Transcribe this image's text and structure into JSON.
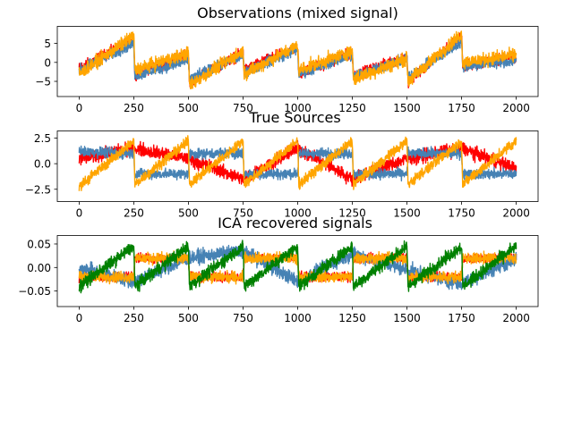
{
  "chart_data": [
    {
      "type": "line",
      "title": "Observations (mixed signal)",
      "xlabel": "",
      "ylabel": "",
      "xlim": [
        -100,
        2100
      ],
      "ylim": [
        -9,
        9.5
      ],
      "xticks": [
        0,
        250,
        500,
        750,
        1000,
        1250,
        1500,
        1750,
        2000
      ],
      "xtick_labels": [
        "0",
        "250",
        "500",
        "750",
        "1000",
        "1250",
        "1500",
        "1750",
        "2000"
      ],
      "yticks": [
        5,
        0,
        -5
      ],
      "ytick_labels": [
        "5",
        "0",
        "−5"
      ],
      "grid": false,
      "legend": "none",
      "x_range": [
        0,
        2000
      ],
      "n_samples": 2000,
      "series": [
        {
          "color": "#ff0000",
          "keypoints": [
            [
              0,
              -1.5
            ],
            [
              250,
              6.0
            ],
            [
              255,
              -3.0
            ],
            [
              500,
              2.0
            ],
            [
              505,
              -5.0
            ],
            [
              750,
              2.5
            ],
            [
              755,
              -2.0
            ],
            [
              1000,
              4.0
            ],
            [
              1005,
              -3.0
            ],
            [
              1250,
              2.5
            ],
            [
              1255,
              -3.5
            ],
            [
              1500,
              1.5
            ],
            [
              1505,
              -5.0
            ],
            [
              1750,
              7.0
            ],
            [
              1755,
              -1.0
            ],
            [
              2000,
              1.5
            ]
          ],
          "noise": 1.0
        },
        {
          "color": "#4682b4",
          "keypoints": [
            [
              0,
              -2.0
            ],
            [
              250,
              5.0
            ],
            [
              255,
              -3.5
            ],
            [
              500,
              0.5
            ],
            [
              505,
              -4.5
            ],
            [
              750,
              2.0
            ],
            [
              755,
              -2.5
            ],
            [
              1000,
              3.5
            ],
            [
              1005,
              -3.0
            ],
            [
              1250,
              2.0
            ],
            [
              1255,
              -3.5
            ],
            [
              1500,
              1.0
            ],
            [
              1505,
              -4.0
            ],
            [
              1750,
              5.5
            ],
            [
              1755,
              -1.0
            ],
            [
              2000,
              0.5
            ]
          ],
          "noise": 1.0
        },
        {
          "color": "#ffa500",
          "keypoints": [
            [
              0,
              -3.0
            ],
            [
              250,
              7.0
            ],
            [
              255,
              -2.0
            ],
            [
              500,
              2.5
            ],
            [
              505,
              -6.0
            ],
            [
              750,
              3.0
            ],
            [
              755,
              -3.0
            ],
            [
              1000,
              4.5
            ],
            [
              1005,
              -2.0
            ],
            [
              1250,
              3.0
            ],
            [
              1255,
              -4.5
            ],
            [
              1500,
              1.0
            ],
            [
              1505,
              -5.0
            ],
            [
              1750,
              7.5
            ],
            [
              1755,
              0.0
            ],
            [
              2000,
              2.0
            ]
          ],
          "noise": 1.2
        }
      ]
    },
    {
      "type": "line",
      "title": "True Sources",
      "xlabel": "",
      "ylabel": "",
      "xlim": [
        -100,
        2100
      ],
      "ylim": [
        -3.7,
        3.2
      ],
      "xticks": [
        0,
        250,
        500,
        750,
        1000,
        1250,
        1500,
        1750,
        2000
      ],
      "xtick_labels": [
        "0",
        "250",
        "500",
        "750",
        "1000",
        "1250",
        "1500",
        "1750",
        "2000"
      ],
      "yticks": [
        2.5,
        0.0,
        -2.5
      ],
      "ytick_labels": [
        "2.5",
        "0.0",
        "−2.5"
      ],
      "grid": false,
      "legend": "none",
      "x_range": [
        0,
        2000
      ],
      "n_samples": 2000,
      "series": [
        {
          "color": "#ff0000",
          "keypoints": [
            [
              0,
              0.5
            ],
            [
              250,
              1.5
            ],
            [
              500,
              0.5
            ],
            [
              750,
              -1.5
            ],
            [
              1000,
              1.5
            ],
            [
              1250,
              -1.5
            ],
            [
              1500,
              0.5
            ],
            [
              1750,
              1.5
            ],
            [
              2000,
              -0.5
            ]
          ],
          "noise": 0.45
        },
        {
          "color": "#4682b4",
          "keypoints": [
            [
              0,
              1.2
            ],
            [
              250,
              1.0
            ],
            [
              255,
              -1.0
            ],
            [
              500,
              -1.0
            ],
            [
              505,
              1.0
            ],
            [
              750,
              1.0
            ],
            [
              755,
              -1.0
            ],
            [
              1000,
              -1.0
            ],
            [
              1005,
              1.0
            ],
            [
              1250,
              1.0
            ],
            [
              1255,
              -1.0
            ],
            [
              1500,
              -1.0
            ],
            [
              1505,
              1.0
            ],
            [
              1750,
              1.0
            ],
            [
              1755,
              -1.0
            ],
            [
              2000,
              -1.0
            ]
          ],
          "noise": 0.35
        },
        {
          "color": "#ffa500",
          "keypoints": [
            [
              0,
              -2.2
            ],
            [
              250,
              2.2
            ],
            [
              255,
              -2.0
            ],
            [
              500,
              2.2
            ],
            [
              505,
              -2.0
            ],
            [
              750,
              2.2
            ],
            [
              755,
              -2.0
            ],
            [
              1000,
              2.2
            ],
            [
              1005,
              -2.0
            ],
            [
              1250,
              2.2
            ],
            [
              1255,
              -2.0
            ],
            [
              1500,
              2.2
            ],
            [
              1505,
              -2.0
            ],
            [
              1750,
              2.2
            ],
            [
              1755,
              -2.0
            ],
            [
              2000,
              2.2
            ]
          ],
          "noise": 0.35
        }
      ]
    },
    {
      "type": "line",
      "title": "ICA recovered signals",
      "xlabel": "",
      "ylabel": "",
      "xlim": [
        -100,
        2100
      ],
      "ylim": [
        -0.083,
        0.068
      ],
      "xticks": [
        0,
        250,
        500,
        750,
        1000,
        1250,
        1500,
        1750,
        2000
      ],
      "xtick_labels": [
        "0",
        "250",
        "500",
        "750",
        "1000",
        "1250",
        "1500",
        "1750",
        "2000"
      ],
      "yticks": [
        0.05,
        0.0,
        -0.05
      ],
      "ytick_labels": [
        "0.05",
        "0.00",
        "−0.05"
      ],
      "grid": false,
      "legend": "none",
      "x_range": [
        0,
        2000
      ],
      "n_samples": 2000,
      "series": [
        {
          "color": "#ff0000",
          "keypoints": [
            [
              0,
              -0.02
            ],
            [
              250,
              -0.02
            ],
            [
              255,
              0.02
            ],
            [
              500,
              0.02
            ],
            [
              505,
              -0.02
            ],
            [
              750,
              -0.02
            ],
            [
              755,
              0.02
            ],
            [
              1000,
              0.02
            ],
            [
              1005,
              -0.02
            ],
            [
              1250,
              -0.02
            ],
            [
              1255,
              0.02
            ],
            [
              1500,
              0.02
            ],
            [
              1505,
              -0.02
            ],
            [
              1750,
              -0.02
            ],
            [
              1755,
              0.02
            ],
            [
              2000,
              0.02
            ]
          ],
          "noise": 0.007
        },
        {
          "color": "#4682b4",
          "keypoints": [
            [
              0,
              0.0
            ],
            [
              250,
              -0.03
            ],
            [
              500,
              0.02
            ],
            [
              750,
              0.035
            ],
            [
              1000,
              -0.03
            ],
            [
              1250,
              0.03
            ],
            [
              1500,
              -0.005
            ],
            [
              1750,
              -0.035
            ],
            [
              2000,
              0.02
            ]
          ],
          "noise": 0.01
        },
        {
          "color": "#ffa500",
          "keypoints": [
            [
              0,
              -0.02
            ],
            [
              250,
              -0.02
            ],
            [
              255,
              0.02
            ],
            [
              500,
              0.02
            ],
            [
              505,
              -0.02
            ],
            [
              750,
              -0.02
            ],
            [
              755,
              0.02
            ],
            [
              1000,
              0.02
            ],
            [
              1005,
              -0.02
            ],
            [
              1250,
              -0.02
            ],
            [
              1255,
              0.02
            ],
            [
              1500,
              0.02
            ],
            [
              1505,
              -0.02
            ],
            [
              1750,
              -0.02
            ],
            [
              1755,
              0.02
            ],
            [
              2000,
              0.02
            ]
          ],
          "noise": 0.008
        },
        {
          "color": "#008000",
          "keypoints": [
            [
              0,
              -0.04
            ],
            [
              250,
              0.045
            ],
            [
              255,
              -0.04
            ],
            [
              500,
              0.045
            ],
            [
              505,
              -0.04
            ],
            [
              750,
              0.045
            ],
            [
              755,
              -0.04
            ],
            [
              1000,
              0.045
            ],
            [
              1005,
              -0.04
            ],
            [
              1250,
              0.045
            ],
            [
              1255,
              -0.04
            ],
            [
              1500,
              0.045
            ],
            [
              1505,
              -0.04
            ],
            [
              1750,
              0.045
            ],
            [
              1755,
              -0.04
            ],
            [
              2000,
              0.045
            ]
          ],
          "noise": 0.009
        }
      ]
    }
  ]
}
